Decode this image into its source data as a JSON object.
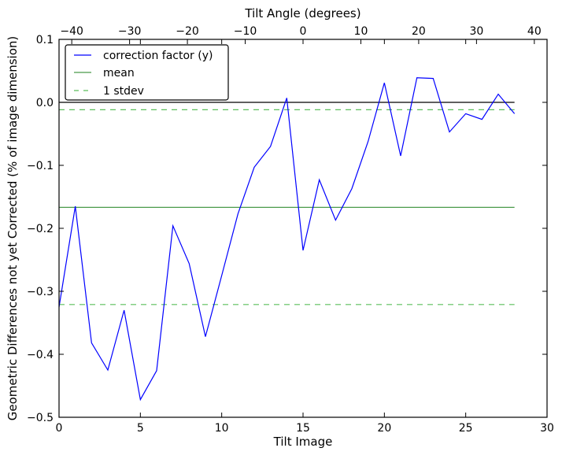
{
  "chart_data": {
    "type": "line",
    "xlabel": "Tilt Image",
    "ylabel": "Geometric Differences not yet Corrected (% of image dimension)",
    "top_xlabel": "Tilt Angle (degrees)",
    "xlim": [
      0,
      30
    ],
    "ylim": [
      -0.5,
      0.1
    ],
    "top_xlim": [
      -42.2,
      42.2
    ],
    "x_ticks": [
      0,
      5,
      10,
      15,
      20,
      25,
      30
    ],
    "y_ticks": [
      -0.5,
      -0.4,
      -0.3,
      -0.2,
      -0.1,
      0.0,
      0.1
    ],
    "y_tick_labels": [
      "−0.5",
      "−0.4",
      "−0.3",
      "−0.2",
      "−0.1",
      "0.0",
      "0.1"
    ],
    "top_ticks": [
      -40,
      -30,
      -20,
      -10,
      0,
      10,
      20,
      30,
      40
    ],
    "top_tick_labels": [
      "−40",
      "−30",
      "−20",
      "−10",
      "0",
      "10",
      "20",
      "30",
      "40"
    ],
    "grid": false,
    "legend_position": "top-left",
    "series": [
      {
        "name": "correction factor (y)",
        "color": "#0000ff",
        "style": "solid",
        "x": [
          0,
          1,
          2,
          3,
          4,
          5,
          6,
          7,
          8,
          9,
          10,
          11,
          12,
          13,
          14,
          15,
          16,
          17,
          18,
          19,
          20,
          21,
          22,
          23,
          24,
          25,
          26,
          27,
          28
        ],
        "values": [
          -0.325,
          -0.165,
          -0.382,
          -0.425,
          -0.33,
          -0.472,
          -0.426,
          -0.196,
          -0.256,
          -0.372,
          -0.275,
          -0.177,
          -0.103,
          -0.07,
          0.007,
          -0.235,
          -0.123,
          -0.187,
          -0.137,
          -0.062,
          0.031,
          -0.085,
          0.039,
          0.038,
          -0.047,
          -0.018,
          -0.027,
          0.013,
          -0.018
        ]
      },
      {
        "name": "mean",
        "color": "#4a9a4a",
        "style": "solid",
        "x": [
          0,
          28
        ],
        "values": [
          -0.1667,
          -0.1667
        ]
      },
      {
        "name": "1 stdev",
        "color": "#5cbf5c",
        "style": "dashed",
        "x": [
          0,
          28
        ],
        "values": [
          -0.0117,
          -0.0117
        ]
      },
      {
        "name": "1 stdev (lower)",
        "color": "#5cbf5c",
        "style": "dashed",
        "x": [
          0,
          28
        ],
        "values": [
          -0.321,
          -0.321
        ]
      },
      {
        "name": "zero",
        "color": "#000000",
        "style": "solid",
        "x": [
          0,
          28
        ],
        "values": [
          0,
          0
        ]
      }
    ],
    "legend": [
      "correction factor (y)",
      "mean",
      "1 stdev"
    ]
  }
}
